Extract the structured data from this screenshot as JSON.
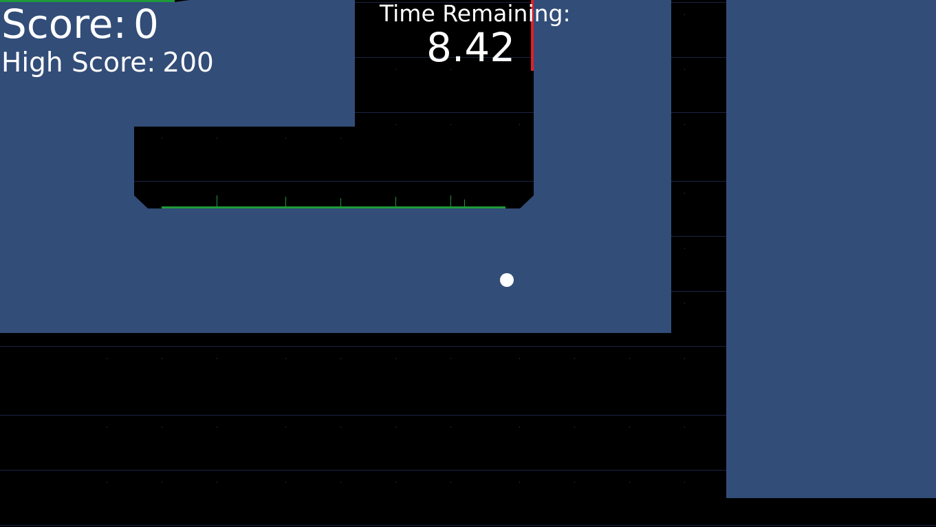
{
  "hud": {
    "score_label": "Score:",
    "score_value": "0",
    "high_score_label": "High Score:",
    "high_score_value": "200",
    "time_label": "Time Remaining:",
    "time_value": "8.42"
  },
  "colors": {
    "background": "#000000",
    "wall": "#324d78",
    "grid_line": "#1a2444",
    "grass": "#1f9a3a",
    "time_marker": "#e0202a",
    "ball": "#ffffff",
    "hud_text": "#ffffff"
  }
}
